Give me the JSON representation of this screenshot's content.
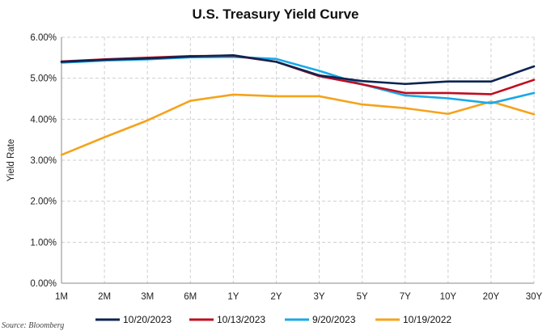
{
  "chart_data": {
    "type": "line",
    "title": "U.S. Treasury Yield Curve",
    "xlabel": "",
    "ylabel": "Yield Rate",
    "categories": [
      "1M",
      "2M",
      "3M",
      "6M",
      "1Y",
      "2Y",
      "3Y",
      "5Y",
      "7Y",
      "10Y",
      "20Y",
      "30Y"
    ],
    "yticks": [
      "0.00%",
      "1.00%",
      "2.00%",
      "3.00%",
      "4.00%",
      "5.00%",
      "6.00%"
    ],
    "ylim": [
      0,
      6
    ],
    "grid": true,
    "legend_position": "bottom",
    "series": [
      {
        "name": "10/20/2023",
        "color": "#0d2451",
        "values": [
          5.4,
          5.45,
          5.48,
          5.53,
          5.56,
          5.4,
          5.07,
          4.93,
          4.86,
          4.92,
          4.92,
          5.29
        ]
      },
      {
        "name": "10/13/2023",
        "color": "#c00c1f",
        "values": [
          5.41,
          5.46,
          5.5,
          5.54,
          5.55,
          5.4,
          5.05,
          4.85,
          4.64,
          4.64,
          4.61,
          4.96
        ]
      },
      {
        "name": "9/20/2023",
        "color": "#18a9e8",
        "values": [
          5.38,
          5.43,
          5.46,
          5.51,
          5.52,
          5.47,
          5.18,
          4.85,
          4.58,
          4.51,
          4.39,
          4.64
        ]
      },
      {
        "name": "10/19/2022",
        "color": "#f5a31c",
        "values": [
          3.13,
          3.56,
          3.97,
          4.45,
          4.6,
          4.56,
          4.56,
          4.36,
          4.27,
          4.13,
          4.43,
          4.12
        ]
      }
    ]
  },
  "source": "Source: Bloomberg"
}
